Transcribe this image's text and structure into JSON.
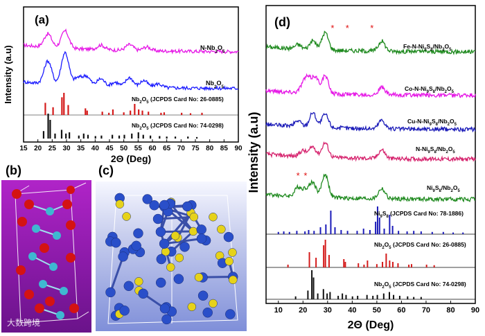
{
  "panels": {
    "a": "(a)",
    "b": "(b)",
    "c": "(c)",
    "d": "(d)"
  },
  "watermark": "大数跨境",
  "chart_data": [
    {
      "type": "line",
      "panel": "(a)",
      "xlabel": "2Θ (Deg)",
      "ylabel": "Intensity (a.u)",
      "xlim": [
        15,
        90
      ],
      "xticks": [
        15,
        20,
        25,
        30,
        35,
        40,
        45,
        50,
        55,
        60,
        65,
        70,
        75,
        80,
        85,
        90
      ],
      "series": [
        {
          "name": "N-Nb2O5",
          "color": "#e619e6",
          "peaks": [
            [
              23.5,
              0.35
            ],
            [
              29.5,
              0.45
            ],
            [
              42,
              0.12
            ],
            [
              52,
              0.15
            ],
            [
              58,
              0.1
            ]
          ]
        },
        {
          "name": "Nb2O5",
          "color": "#1a1aff",
          "peaks": [
            [
              23.5,
              0.6
            ],
            [
              29.5,
              0.85
            ],
            [
              34,
              0.2
            ],
            [
              37,
              0.25
            ],
            [
              42,
              0.2
            ],
            [
              47,
              0.12
            ],
            [
              52,
              0.25
            ],
            [
              57,
              0.18
            ],
            [
              62,
              0.1
            ]
          ]
        }
      ],
      "reference_patterns": [
        {
          "name": "Nb2O5 (JCPDS Card No: 26-0885)",
          "color": "#d41a1a",
          "lines": [
            [
              22.6,
              0.55
            ],
            [
              25.3,
              0.35
            ],
            [
              28.4,
              0.8
            ],
            [
              29.1,
              1.0
            ],
            [
              30.6,
              0.45
            ],
            [
              36.6,
              0.3
            ],
            [
              37.2,
              0.2
            ],
            [
              42.5,
              0.15
            ],
            [
              44.8,
              0.1
            ],
            [
              46.2,
              0.25
            ],
            [
              50.0,
              0.12
            ],
            [
              52.3,
              0.2
            ],
            [
              53.8,
              0.5
            ],
            [
              55.2,
              0.25
            ],
            [
              56.5,
              0.2
            ],
            [
              58.6,
              0.15
            ],
            [
              63.0,
              0.1
            ],
            [
              64.1,
              0.12
            ],
            [
              70.2,
              0.1
            ],
            [
              73.3,
              0.08
            ],
            [
              77.3,
              0.1
            ]
          ]
        },
        {
          "name": "Nb2O5 (JCPDS Card No: 74-0298)",
          "color": "#111111",
          "lines": [
            [
              22.0,
              0.3
            ],
            [
              23.6,
              1.0
            ],
            [
              24.3,
              0.75
            ],
            [
              26.0,
              0.2
            ],
            [
              28.3,
              0.35
            ],
            [
              29.8,
              0.2
            ],
            [
              31.0,
              0.25
            ],
            [
              34.3,
              0.12
            ],
            [
              36.0,
              0.2
            ],
            [
              37.5,
              0.15
            ],
            [
              40.1,
              0.1
            ],
            [
              42.2,
              0.12
            ],
            [
              46.0,
              0.15
            ],
            [
              48.4,
              0.12
            ],
            [
              50.2,
              0.15
            ],
            [
              52.8,
              0.2
            ],
            [
              55.1,
              0.25
            ],
            [
              56.8,
              0.15
            ],
            [
              59.3,
              0.12
            ],
            [
              62.5,
              0.1
            ],
            [
              65.0,
              0.08
            ],
            [
              68.0,
              0.08
            ],
            [
              72.4,
              0.08
            ],
            [
              75.5,
              0.06
            ]
          ]
        }
      ],
      "legend_labels": {
        "N-Nb2O5": [
          "N-Nb",
          "2",
          "O",
          "5"
        ],
        "Nb2O5": [
          "Nb",
          "2",
          "O",
          "5"
        ],
        "ref1": [
          "Nb",
          "2",
          "O",
          "5",
          " (JCPDS Card No: 26-0885)"
        ],
        "ref2": [
          "Nb",
          "2",
          "O",
          "5",
          " (JCPDS Card No: 74-0298)"
        ]
      }
    },
    {
      "type": "line",
      "panel": "(d)",
      "xlabel": "2Θ (Deg)",
      "ylabel": "Intensity (a.u)",
      "xlim": [
        5,
        90
      ],
      "xticks": [
        10,
        20,
        30,
        40,
        50,
        60,
        70,
        80,
        90
      ],
      "series": [
        {
          "name": "Fe-N-Ni9S8/Nb2O5",
          "color": "#1f8a1f",
          "peaks": [
            [
              18,
              0.15
            ],
            [
              24,
              0.3
            ],
            [
              29,
              0.6
            ],
            [
              52,
              0.35
            ]
          ],
          "stars": [
            32,
            38,
            48
          ]
        },
        {
          "name": "Co-N-Ni9S8/Nb2O5",
          "color": "#e619e6",
          "peaks": [
            [
              20,
              0.25
            ],
            [
              22,
              0.45
            ],
            [
              25,
              0.55
            ],
            [
              29,
              0.6
            ],
            [
              52,
              0.25
            ]
          ]
        },
        {
          "name": "Cu-N-Ni9S8/Nb2O5",
          "color": "#1a1ab8",
          "peaks": [
            [
              18,
              0.2
            ],
            [
              24,
              0.5
            ],
            [
              29,
              0.45
            ],
            [
              52,
              0.3
            ]
          ]
        },
        {
          "name": "N-Ni9S8/Nb2O5",
          "color": "#d6246e",
          "peaks": [
            [
              20,
              0.2
            ],
            [
              24,
              0.35
            ],
            [
              29,
              0.5
            ],
            [
              52,
              0.3
            ]
          ]
        },
        {
          "name": "Ni9S8/Nb2O5",
          "color": "#1f8a1f",
          "peaks": [
            [
              18,
              0.3
            ],
            [
              21,
              0.25
            ],
            [
              24,
              0.5
            ],
            [
              29,
              0.8
            ],
            [
              52,
              0.35
            ]
          ],
          "stars": [
            18,
            21
          ]
        }
      ],
      "reference_patterns": [
        {
          "name": "Ni9S8 (JCPDS Card No: 78-1886)",
          "color": "#1a1ab8",
          "lines": [
            [
              10,
              0.08
            ],
            [
              12.2,
              0.1
            ],
            [
              14.5,
              0.08
            ],
            [
              17.5,
              0.12
            ],
            [
              20.8,
              0.1
            ],
            [
              22.3,
              0.15
            ],
            [
              24.5,
              0.12
            ],
            [
              27.1,
              0.25
            ],
            [
              29.3,
              0.35
            ],
            [
              31.3,
              0.85
            ],
            [
              33.0,
              0.25
            ],
            [
              35.5,
              0.15
            ],
            [
              38.1,
              0.12
            ],
            [
              42.0,
              0.12
            ],
            [
              44.6,
              0.2
            ],
            [
              47.2,
              0.15
            ],
            [
              49.5,
              0.45
            ],
            [
              50.3,
              1.0
            ],
            [
              51.1,
              0.6
            ],
            [
              53.0,
              0.2
            ],
            [
              55.2,
              0.7
            ],
            [
              56.4,
              0.3
            ],
            [
              58.8,
              0.12
            ],
            [
              62.3,
              0.1
            ],
            [
              65.0,
              0.12
            ],
            [
              68.0,
              0.1
            ],
            [
              72.5,
              0.08
            ],
            [
              77.0,
              0.08
            ],
            [
              81.0,
              0.06
            ],
            [
              85.0,
              0.06
            ]
          ]
        },
        {
          "name": "Nb2O5 (JCPDS Card No: 26-0885)",
          "color": "#d41a1a",
          "lines": [
            [
              13.9,
              0.1
            ],
            [
              22.6,
              0.55
            ],
            [
              25.3,
              0.35
            ],
            [
              28.4,
              0.8
            ],
            [
              29.1,
              1.0
            ],
            [
              30.6,
              0.45
            ],
            [
              36.6,
              0.3
            ],
            [
              37.2,
              0.2
            ],
            [
              42.5,
              0.15
            ],
            [
              44.8,
              0.1
            ],
            [
              46.2,
              0.25
            ],
            [
              50.0,
              0.12
            ],
            [
              52.3,
              0.2
            ],
            [
              53.8,
              0.5
            ],
            [
              55.2,
              0.25
            ],
            [
              56.5,
              0.2
            ],
            [
              58.6,
              0.15
            ],
            [
              63.0,
              0.1
            ],
            [
              64.1,
              0.12
            ],
            [
              70.2,
              0.1
            ],
            [
              73.3,
              0.08
            ]
          ]
        },
        {
          "name": "Nb2O5 (JCPDS Card No: 74-0298)",
          "color": "#111111",
          "lines": [
            [
              17.0,
              0.1
            ],
            [
              22.0,
              0.3
            ],
            [
              23.6,
              1.0
            ],
            [
              24.3,
              0.75
            ],
            [
              26.0,
              0.2
            ],
            [
              28.3,
              0.35
            ],
            [
              29.8,
              0.2
            ],
            [
              31.0,
              0.25
            ],
            [
              34.3,
              0.12
            ],
            [
              36.0,
              0.2
            ],
            [
              37.5,
              0.15
            ],
            [
              40.1,
              0.1
            ],
            [
              42.2,
              0.12
            ],
            [
              46.0,
              0.15
            ],
            [
              48.4,
              0.12
            ],
            [
              50.2,
              0.15
            ],
            [
              52.8,
              0.2
            ],
            [
              55.1,
              0.25
            ],
            [
              56.8,
              0.15
            ],
            [
              59.3,
              0.12
            ],
            [
              62.5,
              0.1
            ],
            [
              65.0,
              0.08
            ],
            [
              68.0,
              0.08
            ]
          ]
        }
      ],
      "legend_labels": {
        "s1": [
          "Fe-N-Ni",
          "9",
          "S",
          "8",
          "/Nb",
          "2",
          "O",
          "5"
        ],
        "s2": [
          "Co-N-Ni",
          "9",
          "S",
          "8",
          "/Nb",
          "2",
          "O",
          "5"
        ],
        "s3": [
          "Cu-N-Ni",
          "9",
          "S",
          "8",
          "/Nb",
          "2",
          "O",
          "5"
        ],
        "s4": [
          "N-Ni",
          "9",
          "S",
          "8",
          "/Nb",
          "2",
          "O",
          "5"
        ],
        "s5": [
          "Ni",
          "9",
          "S",
          "8",
          "/Nb",
          "2",
          "O",
          "5"
        ],
        "ref1": [
          "Ni",
          "9",
          "S",
          "8",
          " (JCPDS Card No: 78-1886)"
        ],
        "ref2": [
          "Nb",
          "2",
          "O",
          "5",
          " (JCPDS Card No: 26-0885)"
        ],
        "ref3": [
          "Nb",
          "2",
          "O",
          "5",
          " (JCPDS Card No: 74-0298)"
        ]
      }
    }
  ]
}
